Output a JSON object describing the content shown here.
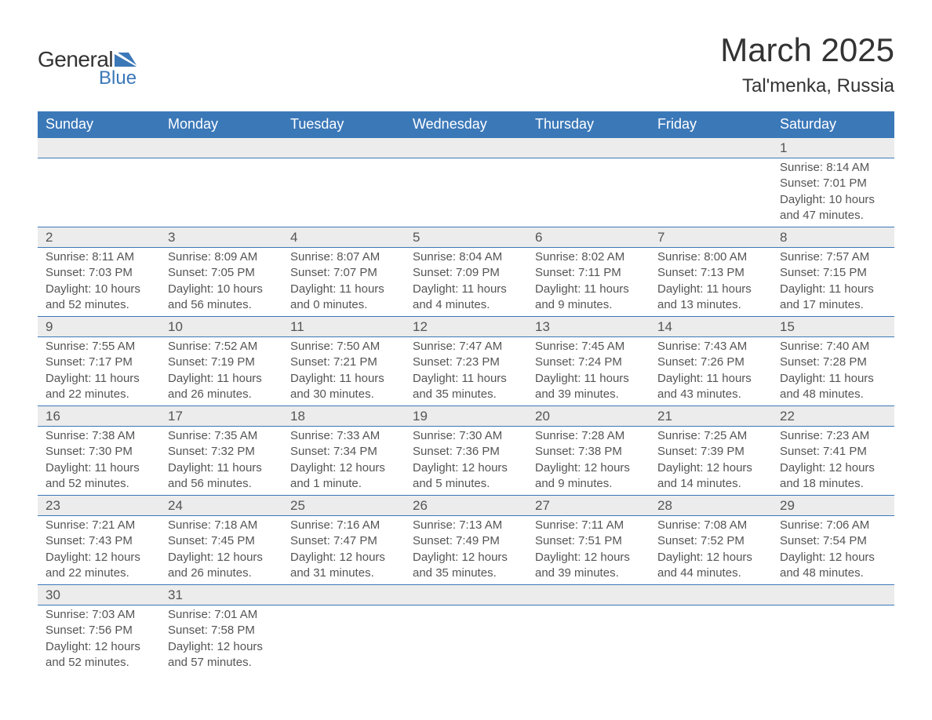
{
  "logo": {
    "text1": "General",
    "text2": "Blue",
    "shape_color": "#3b78b8",
    "text1_color": "#333333"
  },
  "title": "March 2025",
  "location": "Tal'menka, Russia",
  "colors": {
    "header_bg": "#3b78b8",
    "header_text": "#ffffff",
    "daynum_bg": "#ececec",
    "row_border": "#3b78b8",
    "body_text": "#555555",
    "title_text": "#333333",
    "page_bg": "#ffffff"
  },
  "typography": {
    "month_title_pt": 42,
    "location_pt": 24,
    "weekday_pt": 18,
    "daynum_pt": 17,
    "cell_pt": 15,
    "family": "Arial"
  },
  "weekdays": [
    "Sunday",
    "Monday",
    "Tuesday",
    "Wednesday",
    "Thursday",
    "Friday",
    "Saturday"
  ],
  "weeks": [
    [
      null,
      null,
      null,
      null,
      null,
      null,
      {
        "n": "1",
        "sr": "Sunrise: 8:14 AM",
        "ss": "Sunset: 7:01 PM",
        "d1": "Daylight: 10 hours",
        "d2": "and 47 minutes."
      }
    ],
    [
      {
        "n": "2",
        "sr": "Sunrise: 8:11 AM",
        "ss": "Sunset: 7:03 PM",
        "d1": "Daylight: 10 hours",
        "d2": "and 52 minutes."
      },
      {
        "n": "3",
        "sr": "Sunrise: 8:09 AM",
        "ss": "Sunset: 7:05 PM",
        "d1": "Daylight: 10 hours",
        "d2": "and 56 minutes."
      },
      {
        "n": "4",
        "sr": "Sunrise: 8:07 AM",
        "ss": "Sunset: 7:07 PM",
        "d1": "Daylight: 11 hours",
        "d2": "and 0 minutes."
      },
      {
        "n": "5",
        "sr": "Sunrise: 8:04 AM",
        "ss": "Sunset: 7:09 PM",
        "d1": "Daylight: 11 hours",
        "d2": "and 4 minutes."
      },
      {
        "n": "6",
        "sr": "Sunrise: 8:02 AM",
        "ss": "Sunset: 7:11 PM",
        "d1": "Daylight: 11 hours",
        "d2": "and 9 minutes."
      },
      {
        "n": "7",
        "sr": "Sunrise: 8:00 AM",
        "ss": "Sunset: 7:13 PM",
        "d1": "Daylight: 11 hours",
        "d2": "and 13 minutes."
      },
      {
        "n": "8",
        "sr": "Sunrise: 7:57 AM",
        "ss": "Sunset: 7:15 PM",
        "d1": "Daylight: 11 hours",
        "d2": "and 17 minutes."
      }
    ],
    [
      {
        "n": "9",
        "sr": "Sunrise: 7:55 AM",
        "ss": "Sunset: 7:17 PM",
        "d1": "Daylight: 11 hours",
        "d2": "and 22 minutes."
      },
      {
        "n": "10",
        "sr": "Sunrise: 7:52 AM",
        "ss": "Sunset: 7:19 PM",
        "d1": "Daylight: 11 hours",
        "d2": "and 26 minutes."
      },
      {
        "n": "11",
        "sr": "Sunrise: 7:50 AM",
        "ss": "Sunset: 7:21 PM",
        "d1": "Daylight: 11 hours",
        "d2": "and 30 minutes."
      },
      {
        "n": "12",
        "sr": "Sunrise: 7:47 AM",
        "ss": "Sunset: 7:23 PM",
        "d1": "Daylight: 11 hours",
        "d2": "and 35 minutes."
      },
      {
        "n": "13",
        "sr": "Sunrise: 7:45 AM",
        "ss": "Sunset: 7:24 PM",
        "d1": "Daylight: 11 hours",
        "d2": "and 39 minutes."
      },
      {
        "n": "14",
        "sr": "Sunrise: 7:43 AM",
        "ss": "Sunset: 7:26 PM",
        "d1": "Daylight: 11 hours",
        "d2": "and 43 minutes."
      },
      {
        "n": "15",
        "sr": "Sunrise: 7:40 AM",
        "ss": "Sunset: 7:28 PM",
        "d1": "Daylight: 11 hours",
        "d2": "and 48 minutes."
      }
    ],
    [
      {
        "n": "16",
        "sr": "Sunrise: 7:38 AM",
        "ss": "Sunset: 7:30 PM",
        "d1": "Daylight: 11 hours",
        "d2": "and 52 minutes."
      },
      {
        "n": "17",
        "sr": "Sunrise: 7:35 AM",
        "ss": "Sunset: 7:32 PM",
        "d1": "Daylight: 11 hours",
        "d2": "and 56 minutes."
      },
      {
        "n": "18",
        "sr": "Sunrise: 7:33 AM",
        "ss": "Sunset: 7:34 PM",
        "d1": "Daylight: 12 hours",
        "d2": "and 1 minute."
      },
      {
        "n": "19",
        "sr": "Sunrise: 7:30 AM",
        "ss": "Sunset: 7:36 PM",
        "d1": "Daylight: 12 hours",
        "d2": "and 5 minutes."
      },
      {
        "n": "20",
        "sr": "Sunrise: 7:28 AM",
        "ss": "Sunset: 7:38 PM",
        "d1": "Daylight: 12 hours",
        "d2": "and 9 minutes."
      },
      {
        "n": "21",
        "sr": "Sunrise: 7:25 AM",
        "ss": "Sunset: 7:39 PM",
        "d1": "Daylight: 12 hours",
        "d2": "and 14 minutes."
      },
      {
        "n": "22",
        "sr": "Sunrise: 7:23 AM",
        "ss": "Sunset: 7:41 PM",
        "d1": "Daylight: 12 hours",
        "d2": "and 18 minutes."
      }
    ],
    [
      {
        "n": "23",
        "sr": "Sunrise: 7:21 AM",
        "ss": "Sunset: 7:43 PM",
        "d1": "Daylight: 12 hours",
        "d2": "and 22 minutes."
      },
      {
        "n": "24",
        "sr": "Sunrise: 7:18 AM",
        "ss": "Sunset: 7:45 PM",
        "d1": "Daylight: 12 hours",
        "d2": "and 26 minutes."
      },
      {
        "n": "25",
        "sr": "Sunrise: 7:16 AM",
        "ss": "Sunset: 7:47 PM",
        "d1": "Daylight: 12 hours",
        "d2": "and 31 minutes."
      },
      {
        "n": "26",
        "sr": "Sunrise: 7:13 AM",
        "ss": "Sunset: 7:49 PM",
        "d1": "Daylight: 12 hours",
        "d2": "and 35 minutes."
      },
      {
        "n": "27",
        "sr": "Sunrise: 7:11 AM",
        "ss": "Sunset: 7:51 PM",
        "d1": "Daylight: 12 hours",
        "d2": "and 39 minutes."
      },
      {
        "n": "28",
        "sr": "Sunrise: 7:08 AM",
        "ss": "Sunset: 7:52 PM",
        "d1": "Daylight: 12 hours",
        "d2": "and 44 minutes."
      },
      {
        "n": "29",
        "sr": "Sunrise: 7:06 AM",
        "ss": "Sunset: 7:54 PM",
        "d1": "Daylight: 12 hours",
        "d2": "and 48 minutes."
      }
    ],
    [
      {
        "n": "30",
        "sr": "Sunrise: 7:03 AM",
        "ss": "Sunset: 7:56 PM",
        "d1": "Daylight: 12 hours",
        "d2": "and 52 minutes."
      },
      {
        "n": "31",
        "sr": "Sunrise: 7:01 AM",
        "ss": "Sunset: 7:58 PM",
        "d1": "Daylight: 12 hours",
        "d2": "and 57 minutes."
      },
      null,
      null,
      null,
      null,
      null
    ]
  ]
}
